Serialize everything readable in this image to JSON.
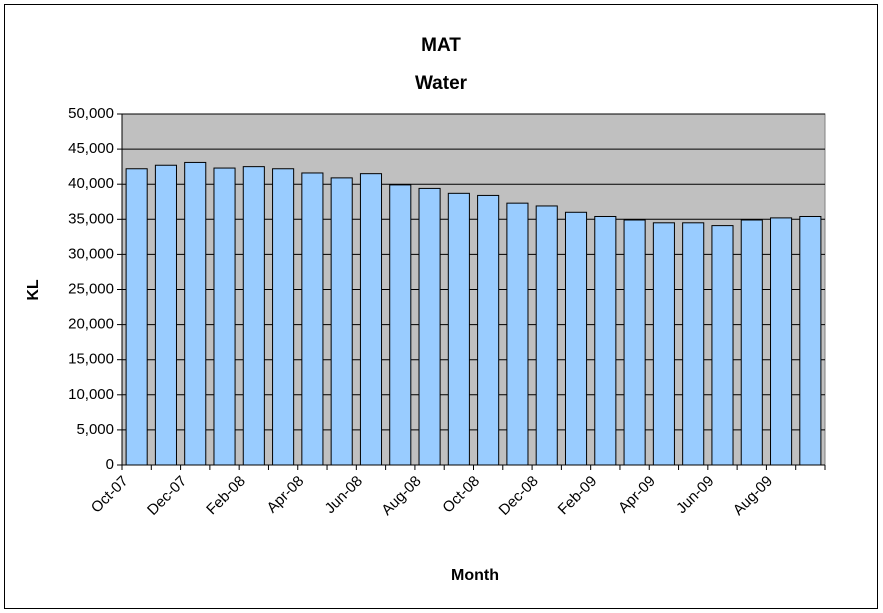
{
  "chart_data": {
    "type": "bar",
    "title": "MAT",
    "subtitle": "Water",
    "x_label": "Month",
    "y_label": "KL",
    "categories": [
      "Oct-07",
      null,
      "Dec-07",
      null,
      "Feb-08",
      null,
      "Apr-08",
      null,
      "Jun-08",
      null,
      "Aug-08",
      null,
      "Oct-08",
      null,
      "Dec-08",
      null,
      "Feb-09",
      null,
      "Apr-09",
      null,
      "Jun-09",
      null,
      "Aug-09",
      null
    ],
    "values": [
      42200,
      42700,
      43100,
      42300,
      42500,
      42200,
      41600,
      40900,
      41500,
      39900,
      39400,
      38700,
      38400,
      37300,
      36900,
      36000,
      35400,
      34900,
      34500,
      34500,
      34100,
      34900,
      35200,
      35400
    ],
    "color": "#99ccff",
    "plot_background": "#c0c0c0",
    "ylim": [
      0,
      50000
    ],
    "yticks": [
      0,
      {
        "value": 5000,
        "label": "5,000"
      },
      {
        "value": 10000,
        "label": "10,000"
      },
      {
        "value": 15000,
        "label": "15,000"
      },
      {
        "value": 20000,
        "label": "20,000"
      },
      {
        "value": 25000,
        "label": "25,000"
      },
      {
        "value": 30000,
        "label": "30,000"
      },
      {
        "value": 35000,
        "label": "35,000"
      },
      {
        "value": 40000,
        "label": "40,000"
      },
      {
        "value": 45000,
        "label": "45,000"
      },
      {
        "value": 50000,
        "label": "50,000"
      }
    ],
    "grid": true
  }
}
